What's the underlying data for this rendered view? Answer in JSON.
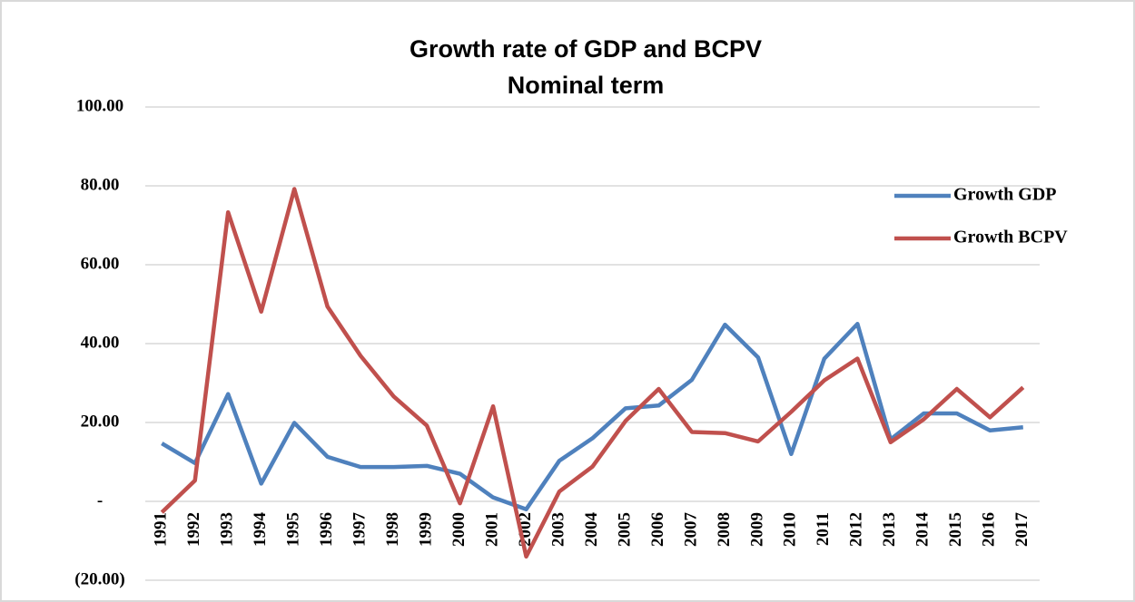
{
  "chart_data": {
    "type": "line",
    "title": "Growth rate of GDP and BCPV",
    "subtitle": "Nominal term",
    "categories": [
      "1991",
      "1992",
      "1993",
      "1994",
      "1995",
      "1996",
      "1997",
      "1998",
      "1999",
      "2000",
      "2001",
      "2002",
      "2003",
      "2004",
      "2005",
      "2006",
      "2007",
      "2008",
      "2009",
      "2010",
      "2011",
      "2012",
      "2013",
      "2014",
      "2015",
      "2016",
      "2017"
    ],
    "series": [
      {
        "name": "Growth GDP",
        "color": "#4f81bd",
        "values": [
          14.7,
          9.7,
          27.2,
          4.5,
          19.9,
          11.3,
          8.7,
          8.7,
          9.0,
          7.0,
          1.0,
          -2.0,
          10.3,
          16.0,
          23.6,
          24.3,
          30.8,
          44.8,
          36.5,
          12.0,
          36.2,
          45.0,
          15.7,
          22.3,
          22.3,
          18.0,
          18.8
        ]
      },
      {
        "name": "Growth BCPV",
        "color": "#c0504d",
        "values": [
          -2.8,
          5.3,
          73.3,
          48.1,
          79.2,
          49.4,
          36.9,
          26.6,
          19.2,
          -0.5,
          24.1,
          -14.0,
          2.5,
          8.8,
          20.4,
          28.5,
          17.6,
          17.3,
          15.2,
          22.7,
          30.7,
          36.2,
          15.0,
          20.8,
          28.5,
          21.3,
          28.9
        ]
      }
    ],
    "ylim": [
      -20,
      100
    ],
    "yticks": [
      {
        "value": -20,
        "label": "(20.00)"
      },
      {
        "value": 0,
        "label": "-"
      },
      {
        "value": 20,
        "label": "20.00"
      },
      {
        "value": 40,
        "label": "40.00"
      },
      {
        "value": 60,
        "label": "60.00"
      },
      {
        "value": 80,
        "label": "80.00"
      },
      {
        "value": 100,
        "label": "100.00"
      }
    ],
    "grid": true,
    "legend_position": "right"
  }
}
